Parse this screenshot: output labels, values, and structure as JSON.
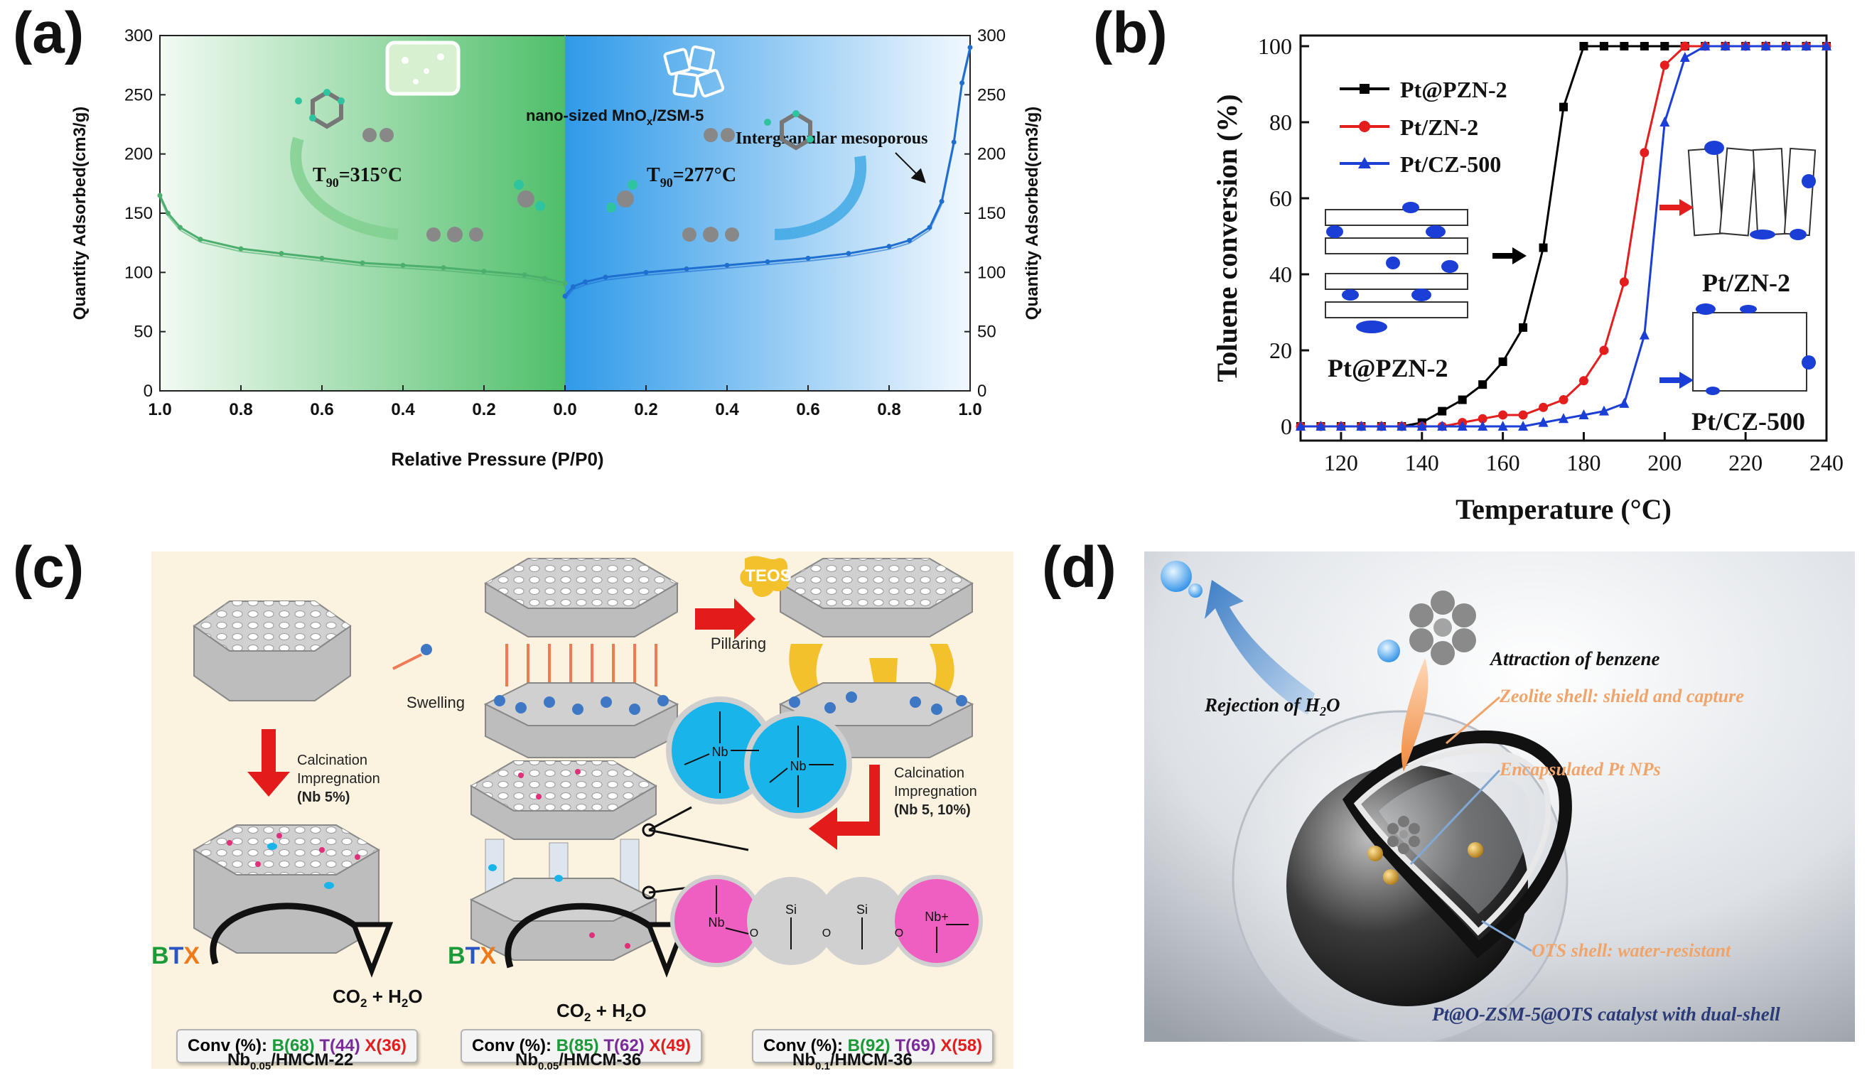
{
  "panels": {
    "a": {
      "label": "(a)",
      "chart_data": {
        "type": "line",
        "title": "",
        "xlabel": "Relative Pressure (P/P0)",
        "ylabel_left": "Quantity Adsorbed(cm3/g)",
        "ylabel_right": "Quantity Adsorbed(cm3/g)",
        "left_xticks": [
          "1.0",
          "0.8",
          "0.6",
          "0.4",
          "0.2",
          "0.0"
        ],
        "right_xticks": [
          "0.0",
          "0.2",
          "0.4",
          "0.6",
          "0.8",
          "1.0"
        ],
        "yticks": [
          "0",
          "50",
          "100",
          "150",
          "200",
          "250",
          "300"
        ],
        "ylim": [
          0,
          300
        ],
        "series": [
          {
            "name": "MnOx/ZSM-5 (left)",
            "color": "#4caf6e",
            "x": [
              1.0,
              0.98,
              0.95,
              0.9,
              0.8,
              0.7,
              0.6,
              0.5,
              0.4,
              0.3,
              0.2,
              0.1,
              0.05,
              0.0
            ],
            "y": [
              165,
              150,
              138,
              128,
              120,
              116,
              112,
              108,
              106,
              104,
              101,
              98,
              95,
              91
            ]
          },
          {
            "name": "nano-sized MnOx/ZSM-5 (right)",
            "color": "#1f6fd0",
            "x": [
              0.0,
              0.02,
              0.05,
              0.1,
              0.2,
              0.3,
              0.4,
              0.5,
              0.6,
              0.7,
              0.8,
              0.85,
              0.9,
              0.93,
              0.96,
              0.98,
              1.0
            ],
            "y": [
              80,
              88,
              92,
              96,
              100,
              103,
              106,
              109,
              112,
              116,
              122,
              127,
              138,
              160,
              210,
              260,
              290
            ]
          }
        ],
        "annotations": {
          "nano_label_prefix": "nano-sized MnO",
          "nano_label_sub": "x",
          "nano_label_suffix": "/ZSM-5",
          "mesoporous": "Intergranular mesoporous",
          "t90_left_prefix": "T",
          "t90_left_sub": "90",
          "t90_left_value": "=315°C",
          "t90_right_prefix": "T",
          "t90_right_sub": "90",
          "t90_right_value": "=277°C"
        }
      }
    },
    "b": {
      "label": "(b)",
      "chart_data": {
        "type": "line",
        "xlabel": "Temperature (°C)",
        "ylabel": "Toluene conversion (%)",
        "xlim": [
          110,
          240
        ],
        "ylim": [
          0,
          100
        ],
        "xticks": [
          "120",
          "140",
          "160",
          "180",
          "200",
          "220",
          "240"
        ],
        "yticks": [
          "0",
          "20",
          "40",
          "60",
          "80",
          "100"
        ],
        "series": [
          {
            "name": "Pt@PZN-2",
            "color": "#000000",
            "marker": "square",
            "x": [
              110,
              115,
              120,
              125,
              130,
              135,
              140,
              145,
              150,
              155,
              160,
              165,
              170,
              175,
              180,
              185,
              190,
              195,
              200,
              205,
              210,
              215,
              220,
              225,
              230,
              235,
              240
            ],
            "y": [
              0,
              0,
              0,
              0,
              0,
              0,
              1,
              4,
              7,
              11,
              17,
              26,
              47,
              84,
              100,
              100,
              100,
              100,
              100,
              100,
              100,
              100,
              100,
              100,
              100,
              100,
              100
            ]
          },
          {
            "name": "Pt/ZN-2",
            "color": "#e41d1d",
            "marker": "circle",
            "x": [
              110,
              115,
              120,
              125,
              130,
              135,
              140,
              145,
              150,
              155,
              160,
              165,
              170,
              175,
              180,
              185,
              190,
              195,
              200,
              205,
              210,
              215,
              220,
              225,
              230,
              235,
              240
            ],
            "y": [
              0,
              0,
              0,
              0,
              0,
              0,
              0,
              0,
              1,
              2,
              3,
              3,
              5,
              7,
              12,
              20,
              38,
              72,
              95,
              100,
              100,
              100,
              100,
              100,
              100,
              100,
              100
            ]
          },
          {
            "name": "Pt/CZ-500",
            "color": "#1b3fd6",
            "marker": "triangle",
            "x": [
              110,
              115,
              120,
              125,
              130,
              135,
              140,
              145,
              150,
              155,
              160,
              165,
              170,
              175,
              180,
              185,
              190,
              195,
              200,
              205,
              210,
              215,
              220,
              225,
              230,
              235,
              240
            ],
            "y": [
              0,
              0,
              0,
              0,
              0,
              0,
              0,
              0,
              0,
              0,
              0,
              0,
              1,
              2,
              3,
              4,
              6,
              24,
              80,
              97,
              100,
              100,
              100,
              100,
              100,
              100,
              100
            ]
          }
        ],
        "insets": {
          "pzn": "Pt@PZN-2",
          "zn": "Pt/ZN-2",
          "cz": "Pt/CZ-500"
        }
      }
    },
    "c": {
      "label": "(c)",
      "labels": {
        "swelling": "Swelling",
        "pillaring": "Pillaring",
        "teos": "TEOS",
        "calc_left_1": "Calcination",
        "calc_left_2": "Impregnation",
        "calc_left_3": "(Nb 5%)",
        "calc_right_1": "Calcination",
        "calc_right_2": "Impregnation",
        "calc_right_3": "(Nb 5, 10%)",
        "btx_b": "B",
        "btx_t": "T",
        "btx_x": "X",
        "co2_left": "CO",
        "co2_sub": "2",
        "h2o_prefix": " + H",
        "h2o_sub": "2",
        "h2o_suffix": "O",
        "nb": "Nb",
        "si": "Si",
        "o": "O",
        "nb_plus": "Nb+"
      },
      "conversions": [
        {
          "prefix": "Conv (%): ",
          "b": "B(68)",
          "t": "T(44)",
          "x": "X(36)",
          "catalyst_pre": "Nb",
          "catalyst_sub": "0.05",
          "catalyst_post": "/HMCM-22"
        },
        {
          "prefix": "Conv (%): ",
          "b": "B(85)",
          "t": "T(62)",
          "x": "X(49)",
          "catalyst_pre": "Nb",
          "catalyst_sub": "0.05",
          "catalyst_post": "/HMCM-36"
        },
        {
          "prefix": "Conv (%): ",
          "b": "B(92)",
          "t": "T(69)",
          "x": "X(58)",
          "catalyst_pre": "Nb",
          "catalyst_sub": "0.1",
          "catalyst_post": "/HMCM-36"
        }
      ],
      "colors": {
        "background": "#fbf3df",
        "arrow": "#e31b1b",
        "nb_circle": "#19b4ea",
        "pink_circle": "#ef5fc2"
      }
    },
    "d": {
      "label": "(d)",
      "labels": {
        "rejection_prefix": "Rejection of H",
        "rejection_sub": "2",
        "rejection_suffix": "O",
        "attraction": "Attraction of benzene",
        "zeolite": "Zeolite shell: shield and capture",
        "encapsulated": "Encapsulated Pt NPs",
        "ots": "OTS shell: water-resistant",
        "caption": "Pt@O-ZSM-5@OTS catalyst with dual-shell"
      },
      "colors": {
        "orange_text": "#f0a46a",
        "caption": "#2b3a78"
      }
    }
  }
}
